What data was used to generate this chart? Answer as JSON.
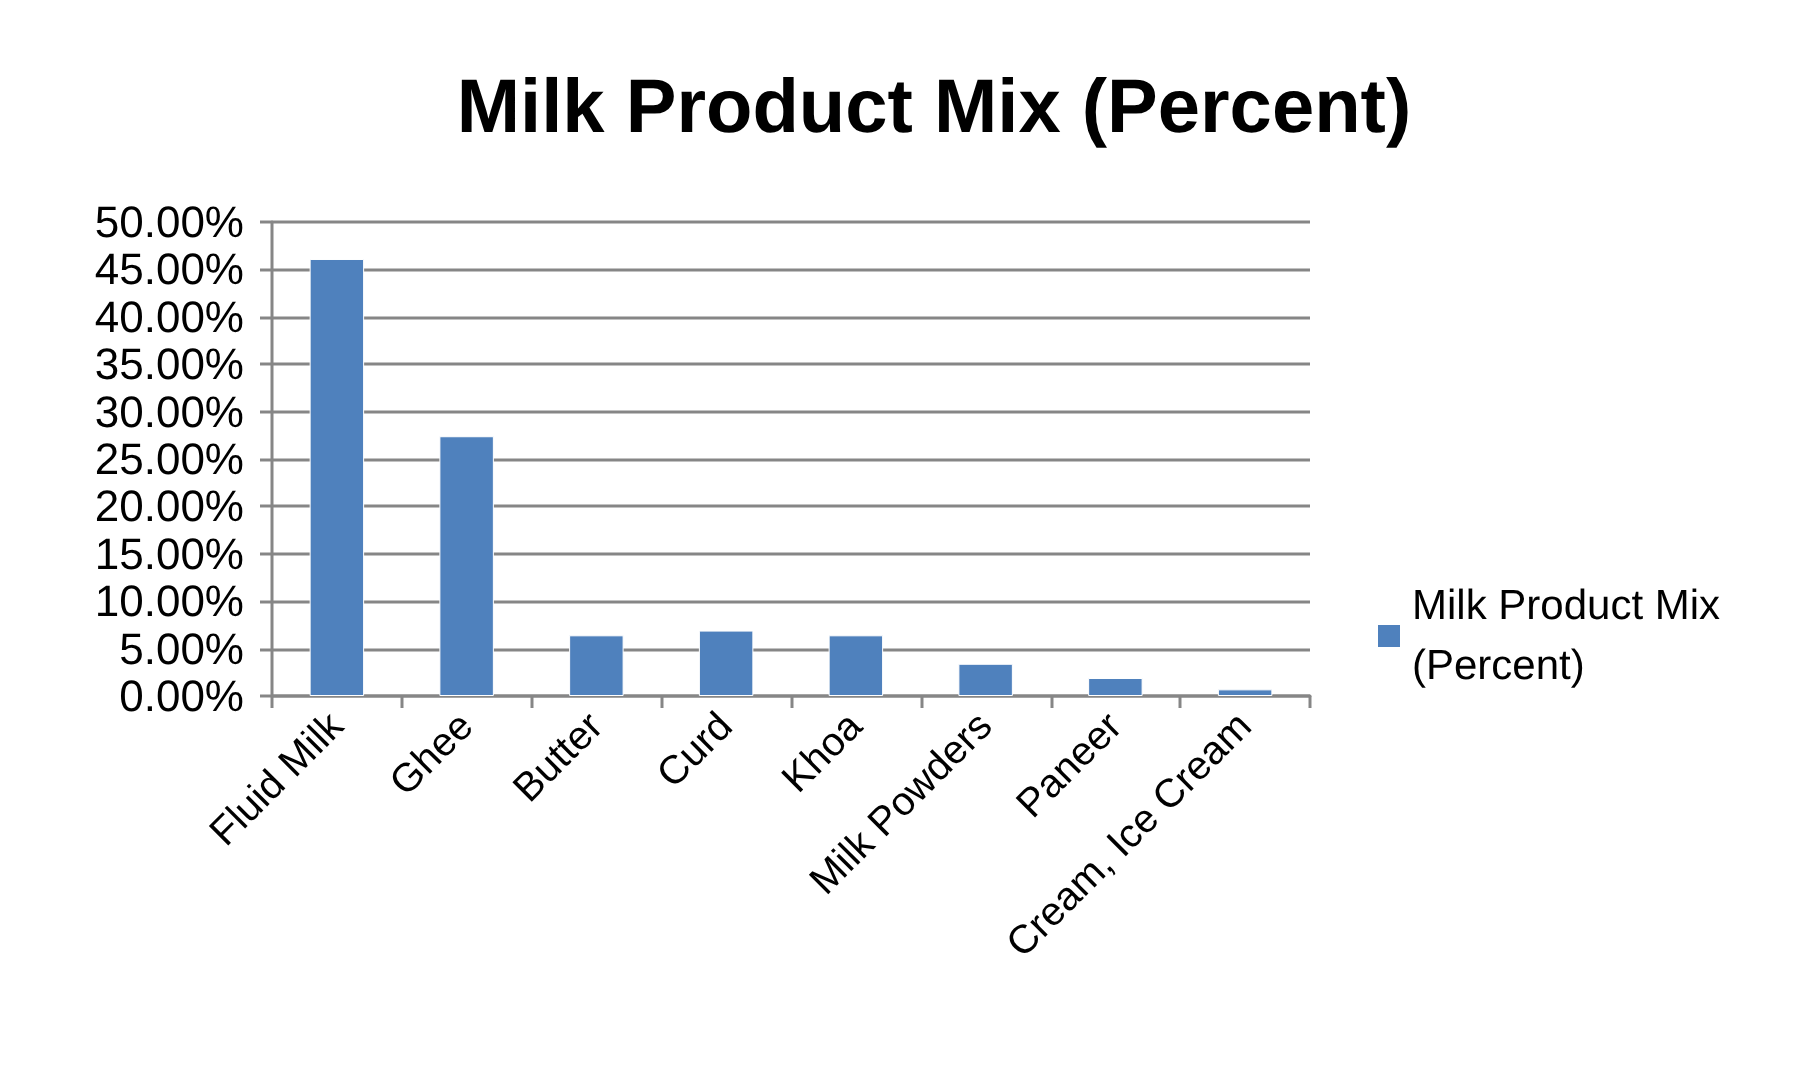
{
  "chart_data": {
    "type": "bar",
    "title": "Milk Product Mix (Percent)",
    "categories": [
      "Fluid Milk",
      "Ghee",
      "Butter",
      "Curd",
      "Khoa",
      "Milk Powders",
      "Paneer",
      "Cream, Ice Cream"
    ],
    "series": [
      {
        "name": "Milk Product Mix (Percent)",
        "color": "#4f81bd",
        "values": [
          46.1,
          27.4,
          6.4,
          6.9,
          6.4,
          3.4,
          1.9,
          0.7
        ]
      }
    ],
    "ylim": [
      0,
      50
    ],
    "yticks": [
      {
        "value": 0,
        "label": "0.00%"
      },
      {
        "value": 5,
        "label": "5.00%"
      },
      {
        "value": 10,
        "label": "10.00%"
      },
      {
        "value": 15,
        "label": "15.00%"
      },
      {
        "value": 20,
        "label": "20.00%"
      },
      {
        "value": 25,
        "label": "25.00%"
      },
      {
        "value": 30,
        "label": "30.00%"
      },
      {
        "value": 35,
        "label": "35.00%"
      },
      {
        "value": 40,
        "label": "40.00%"
      },
      {
        "value": 45,
        "label": "45.00%"
      },
      {
        "value": 50,
        "label": "50.00%"
      }
    ],
    "grid": "y",
    "legend": "right"
  }
}
